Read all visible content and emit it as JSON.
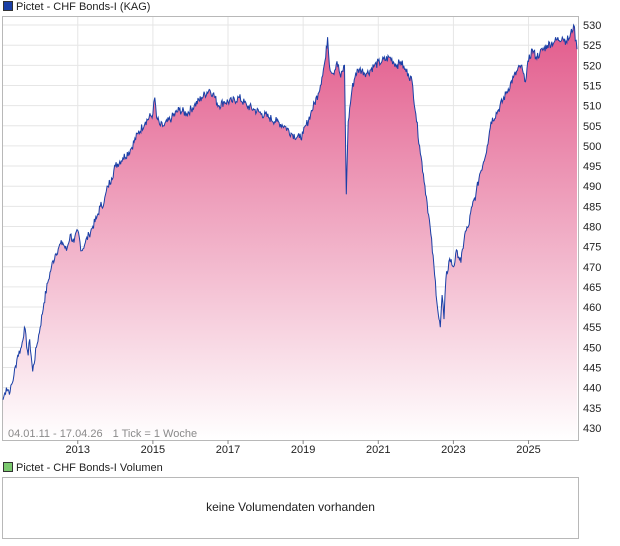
{
  "colors": {
    "price_line": "#1a3fa6",
    "area_top": "#e25a8b",
    "area_bottom": "#ffffff",
    "grid": "#e6e6e6",
    "legend_price": "#1a3fa6",
    "legend_volume": "#7bc96f"
  },
  "price_panel": {
    "legend": "Pictet - CHF Bonds-I (KAG)",
    "date_range": "04.01.11 - 17.04.26",
    "tick_info": "1 Tick = 1 Woche"
  },
  "volume_panel": {
    "legend": "Pictet - CHF Bonds-I Volumen",
    "message": "keine Volumendaten vorhanden"
  },
  "chart_data": {
    "type": "area",
    "title": "Pictet - CHF Bonds-I (KAG)",
    "xlim": [
      2011.01,
      2026.29
    ],
    "ylim": [
      427,
      532
    ],
    "grid": true,
    "y_axis_position": "right",
    "x_tick_labels": [
      "2013",
      "2015",
      "2017",
      "2019",
      "2021",
      "2023",
      "2025"
    ],
    "x_tick_values": [
      2013,
      2015,
      2017,
      2019,
      2021,
      2023,
      2025
    ],
    "y_tick_labels": [
      "430",
      "435",
      "440",
      "445",
      "450",
      "455",
      "460",
      "465",
      "470",
      "475",
      "480",
      "485",
      "490",
      "495",
      "500",
      "505",
      "510",
      "515",
      "520",
      "525",
      "530"
    ],
    "y_tick_values": [
      430,
      435,
      440,
      445,
      450,
      455,
      460,
      465,
      470,
      475,
      480,
      485,
      490,
      495,
      500,
      505,
      510,
      515,
      520,
      525,
      530
    ],
    "series": [
      {
        "x": [
          2011.01,
          2011.1,
          2011.2,
          2011.3,
          2011.4,
          2011.5,
          2011.58,
          2011.68,
          2011.72,
          2011.8,
          2011.9,
          2012.0,
          2012.1,
          2012.2,
          2012.3,
          2012.4,
          2012.5,
          2012.6,
          2012.7,
          2012.8,
          2012.9,
          2013.0,
          2013.1,
          2013.2,
          2013.3,
          2013.4,
          2013.5,
          2013.6,
          2013.7,
          2013.8,
          2013.9,
          2014.0,
          2014.2,
          2014.4,
          2014.6,
          2014.8,
          2015.0,
          2015.05,
          2015.1,
          2015.2,
          2015.3,
          2015.5,
          2015.7,
          2015.9,
          2016.1,
          2016.3,
          2016.5,
          2016.6,
          2016.75,
          2016.9,
          2017.1,
          2017.3,
          2017.5,
          2017.7,
          2017.9,
          2018.1,
          2018.3,
          2018.5,
          2018.7,
          2018.9,
          2019.0,
          2019.2,
          2019.4,
          2019.5,
          2019.6,
          2019.65,
          2019.7,
          2019.8,
          2019.9,
          2020.0,
          2020.1,
          2020.15,
          2020.2,
          2020.3,
          2020.4,
          2020.5,
          2020.7,
          2020.9,
          2021.1,
          2021.3,
          2021.5,
          2021.6,
          2021.7,
          2021.8,
          2021.9,
          2022.0,
          2022.1,
          2022.2,
          2022.3,
          2022.4,
          2022.5,
          2022.6,
          2022.65,
          2022.7,
          2022.75,
          2022.8,
          2022.9,
          2023.0,
          2023.1,
          2023.2,
          2023.3,
          2023.4,
          2023.5,
          2023.6,
          2023.7,
          2023.8,
          2023.9,
          2024.0,
          2024.2,
          2024.4,
          2024.6,
          2024.8,
          2024.9,
          2025.0,
          2025.1,
          2025.2,
          2025.3,
          2025.5,
          2025.7,
          2025.9,
          2026.0,
          2026.1,
          2026.2,
          2026.29
        ],
        "y": [
          437,
          440,
          439,
          443,
          448,
          450,
          455,
          448,
          452,
          444,
          450,
          455,
          461,
          466,
          470,
          473,
          475,
          476,
          474,
          478,
          476,
          479,
          474,
          476,
          478,
          480,
          482,
          485,
          486,
          490,
          492,
          495,
          497,
          499,
          503,
          506,
          508,
          512,
          507,
          505,
          505,
          507,
          509,
          508,
          510,
          512,
          514,
          513,
          510,
          511,
          511,
          512,
          510,
          509,
          508,
          507,
          506,
          505,
          503,
          502,
          503,
          508,
          513,
          517,
          522,
          527,
          520,
          518,
          521,
          517,
          520,
          488,
          506,
          514,
          518,
          519,
          518,
          520,
          521,
          522,
          520,
          521,
          519,
          518,
          516,
          508,
          500,
          493,
          486,
          478,
          468,
          458,
          455,
          463,
          457,
          467,
          472,
          470,
          474,
          471,
          478,
          480,
          485,
          488,
          493,
          496,
          500,
          506,
          509,
          513,
          517,
          520,
          516,
          521,
          524,
          522,
          523,
          525,
          526,
          527,
          526,
          527,
          530,
          524
        ]
      }
    ]
  }
}
